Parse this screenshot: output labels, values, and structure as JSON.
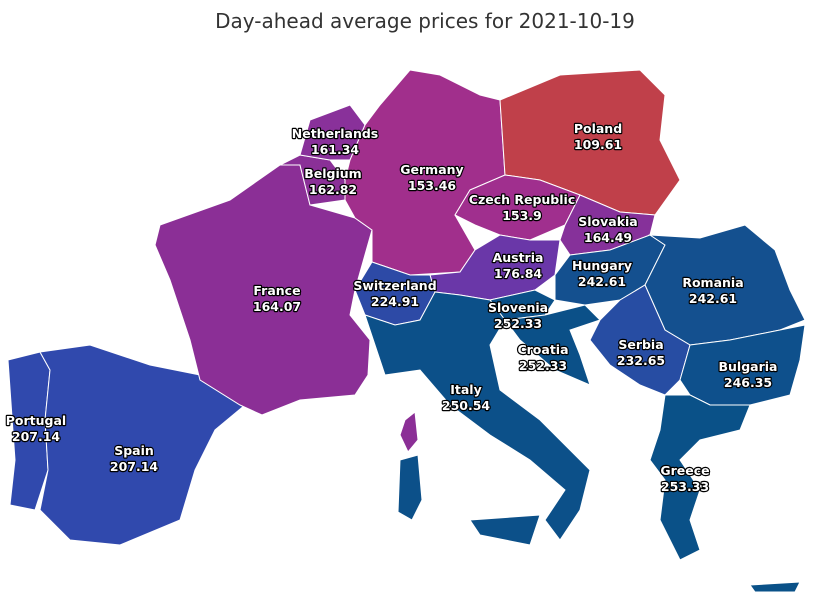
{
  "title": "Day-ahead average prices for 2021-10-19",
  "regions": [
    {
      "name": "Portugal",
      "value": 207.14,
      "color": "#3049ad"
    },
    {
      "name": "Spain",
      "value": 207.14,
      "color": "#3049ad"
    },
    {
      "name": "France",
      "value": 164.07,
      "color": "#8b2f96"
    },
    {
      "name": "Belgium",
      "value": 162.82,
      "color": "#8a3097"
    },
    {
      "name": "Netherlands",
      "value": 161.34,
      "color": "#89319a"
    },
    {
      "name": "Germany",
      "value": 153.46,
      "color": "#a12f8c"
    },
    {
      "name": "Poland",
      "value": 109.61,
      "color": "#c0404a"
    },
    {
      "name": "Czech Republic",
      "value": 153.9,
      "color": "#a02f8e"
    },
    {
      "name": "Slovakia",
      "value": 164.49,
      "color": "#86319a"
    },
    {
      "name": "Austria",
      "value": 176.84,
      "color": "#6a37a8"
    },
    {
      "name": "Switzerland",
      "value": 224.91,
      "color": "#2d4aa6"
    },
    {
      "name": "Hungary",
      "value": 242.61,
      "color": "#14508f"
    },
    {
      "name": "Romania",
      "value": 242.61,
      "color": "#14508f"
    },
    {
      "name": "Slovenia",
      "value": 252.33,
      "color": "#0b5088"
    },
    {
      "name": "Croatia",
      "value": 252.33,
      "color": "#0b5088"
    },
    {
      "name": "Serbia",
      "value": 232.65,
      "color": "#274da3"
    },
    {
      "name": "Bulgaria",
      "value": 246.35,
      "color": "#0e508c"
    },
    {
      "name": "Italy",
      "value": 250.54,
      "color": "#0c5089"
    },
    {
      "name": "Greece",
      "value": 253.33,
      "color": "#0a5188"
    }
  ]
}
